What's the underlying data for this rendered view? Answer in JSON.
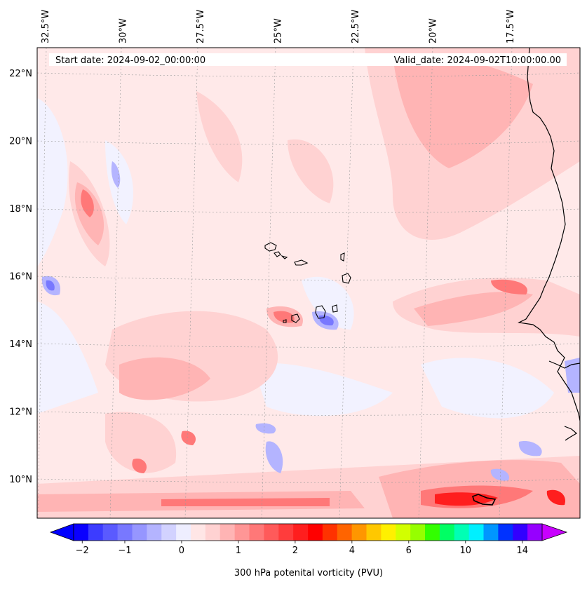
{
  "header": {
    "start_label": "Start date: 2024-09-02_00:00:00",
    "valid_label": "Valid_date: 2024-09-02T10:00:00.00"
  },
  "lon_ticks": [
    {
      "label": "32.5°W",
      "value": -32.5
    },
    {
      "label": "30°W",
      "value": -30
    },
    {
      "label": "27.5°W",
      "value": -27.5
    },
    {
      "label": "25°W",
      "value": -25
    },
    {
      "label": "22.5°W",
      "value": -22.5
    },
    {
      "label": "20°W",
      "value": -20
    },
    {
      "label": "17.5°W",
      "value": -17.5
    }
  ],
  "lat_ticks": [
    {
      "label": "22°N",
      "value": 22
    },
    {
      "label": "20°N",
      "value": 20
    },
    {
      "label": "18°N",
      "value": 18
    },
    {
      "label": "16°N",
      "value": 16
    },
    {
      "label": "14°N",
      "value": 14
    },
    {
      "label": "12°N",
      "value": 12
    },
    {
      "label": "10°N",
      "value": 10
    }
  ],
  "colorbar": {
    "title": "300 hPa potenital vorticity (PVU)",
    "tick_labels": [
      "−2",
      "−1",
      "0",
      "1",
      "2",
      "4",
      "6",
      "10",
      "14"
    ],
    "colors": [
      "#0a00ff",
      "#3c3cff",
      "#5a5aff",
      "#7878ff",
      "#9696ff",
      "#b4b4ff",
      "#d2d2ff",
      "#eeeeff",
      "#ffe6e6",
      "#ffd2d2",
      "#ffb4b4",
      "#ff9696",
      "#ff7878",
      "#ff5a5a",
      "#ff3c3c",
      "#ff1e1e",
      "#ff0000",
      "#ff3200",
      "#ff6400",
      "#ff9600",
      "#ffc800",
      "#fff000",
      "#d2ff00",
      "#96ff00",
      "#32ff00",
      "#00ff64",
      "#00ffb4",
      "#00f0ff",
      "#0096ff",
      "#0032ff",
      "#3200ff",
      "#9600ff"
    ],
    "under_color": "#0000ff",
    "over_color": "#c800ff"
  },
  "map": {
    "background": "#ffe9e9",
    "coastline_color": "#000000"
  }
}
